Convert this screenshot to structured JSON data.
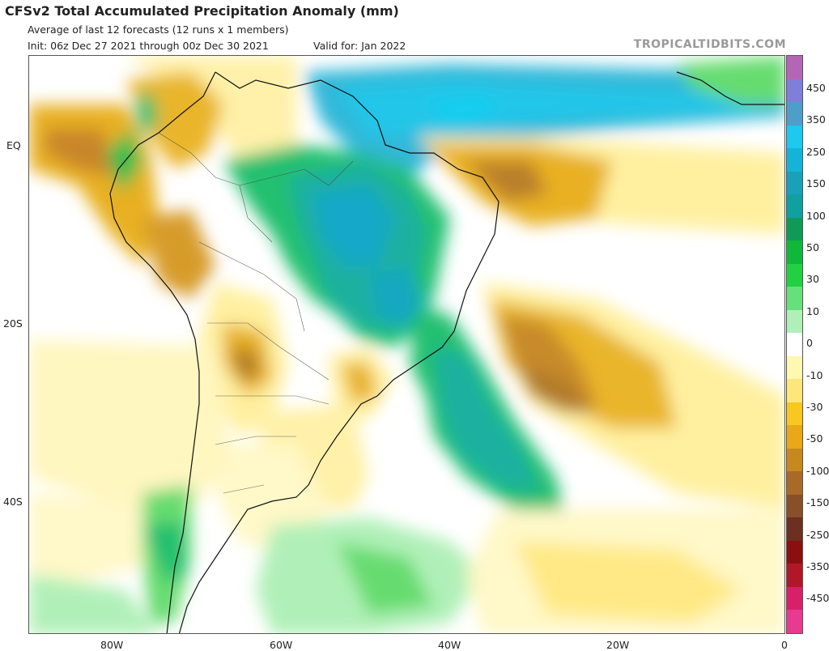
{
  "header": {
    "title": "CFSv2 Total Accumulated Precipitation Anomaly (mm)",
    "subtitle": "Average of last 12 forecasts (12 runs x 1 members)",
    "init": "Init: 06z Dec 27 2021 through 00z Dec 30 2021",
    "valid": "Valid for: Jan 2022",
    "brand": "TROPICALTIDBITS.COM"
  },
  "axes": {
    "lat_labels": [
      "EQ",
      "20S",
      "40S"
    ],
    "lon_labels": [
      "80W",
      "60W",
      "40W",
      "20W",
      "0"
    ]
  },
  "colorbar": {
    "labels": [
      "450",
      "350",
      "250",
      "150",
      "100",
      "50",
      "30",
      "10",
      "0",
      "-10",
      "-30",
      "-50",
      "-100",
      "-150",
      "-250",
      "-350",
      "-450"
    ],
    "colors": [
      "#b366b3",
      "#7f7fd9",
      "#4f9ec9",
      "#1ec8ee",
      "#14b4d8",
      "#1aa0b8",
      "#10a0a0",
      "#0f9a58",
      "#10b83a",
      "#22d044",
      "#66e07a",
      "#b0f0b8",
      "#ffffff",
      "#fff8b0",
      "#ffe67a",
      "#f6c820",
      "#e8a818",
      "#c88820",
      "#a86a28",
      "#885028",
      "#6b3020",
      "#8a1010",
      "#b01828",
      "#d8206a",
      "#e83a90"
    ]
  },
  "map": {
    "description_colors": {
      "wet_strong": "#10a0a0",
      "wet": "#22c070",
      "dry": "#e8b020",
      "dry_strong": "#b07a2a",
      "ocean": "#ffffff"
    }
  }
}
